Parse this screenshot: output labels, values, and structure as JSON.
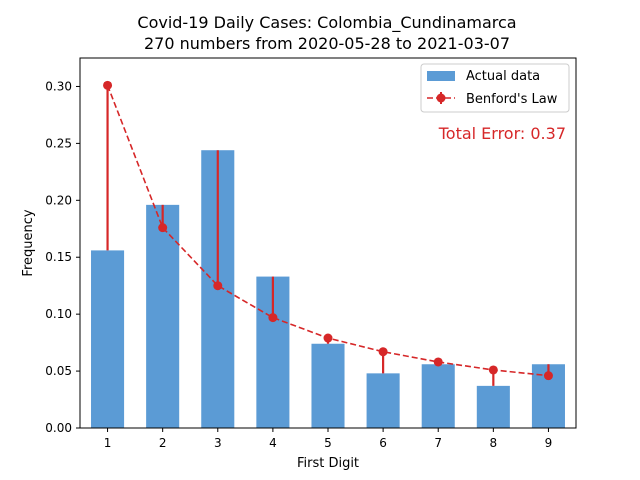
{
  "chart_data": {
    "type": "bar",
    "title": "Covid-19 Daily Cases: Colombia_Cundinamarca",
    "subtitle": "270 numbers from 2020-05-28 to 2021-03-07",
    "xlabel": "First Digit",
    "ylabel": "Frequency",
    "categories": [
      "1",
      "2",
      "3",
      "4",
      "5",
      "6",
      "7",
      "8",
      "9"
    ],
    "ylim": [
      0,
      0.325
    ],
    "yticks": [
      "0.00",
      "0.05",
      "0.10",
      "0.15",
      "0.20",
      "0.25",
      "0.30"
    ],
    "series": [
      {
        "name": "Actual data",
        "type": "bar",
        "color": "#5b9bd5",
        "values": [
          0.156,
          0.196,
          0.244,
          0.133,
          0.074,
          0.048,
          0.056,
          0.037,
          0.056
        ]
      },
      {
        "name": "Benford's Law",
        "type": "line",
        "style": "dashed, circle markers, vertical error lines",
        "color": "#d62728",
        "values": [
          0.301,
          0.176,
          0.125,
          0.097,
          0.079,
          0.067,
          0.058,
          0.051,
          0.046
        ]
      }
    ],
    "annotation": "Total Error: 0.37",
    "legend_position": "top-right",
    "grid": false
  }
}
